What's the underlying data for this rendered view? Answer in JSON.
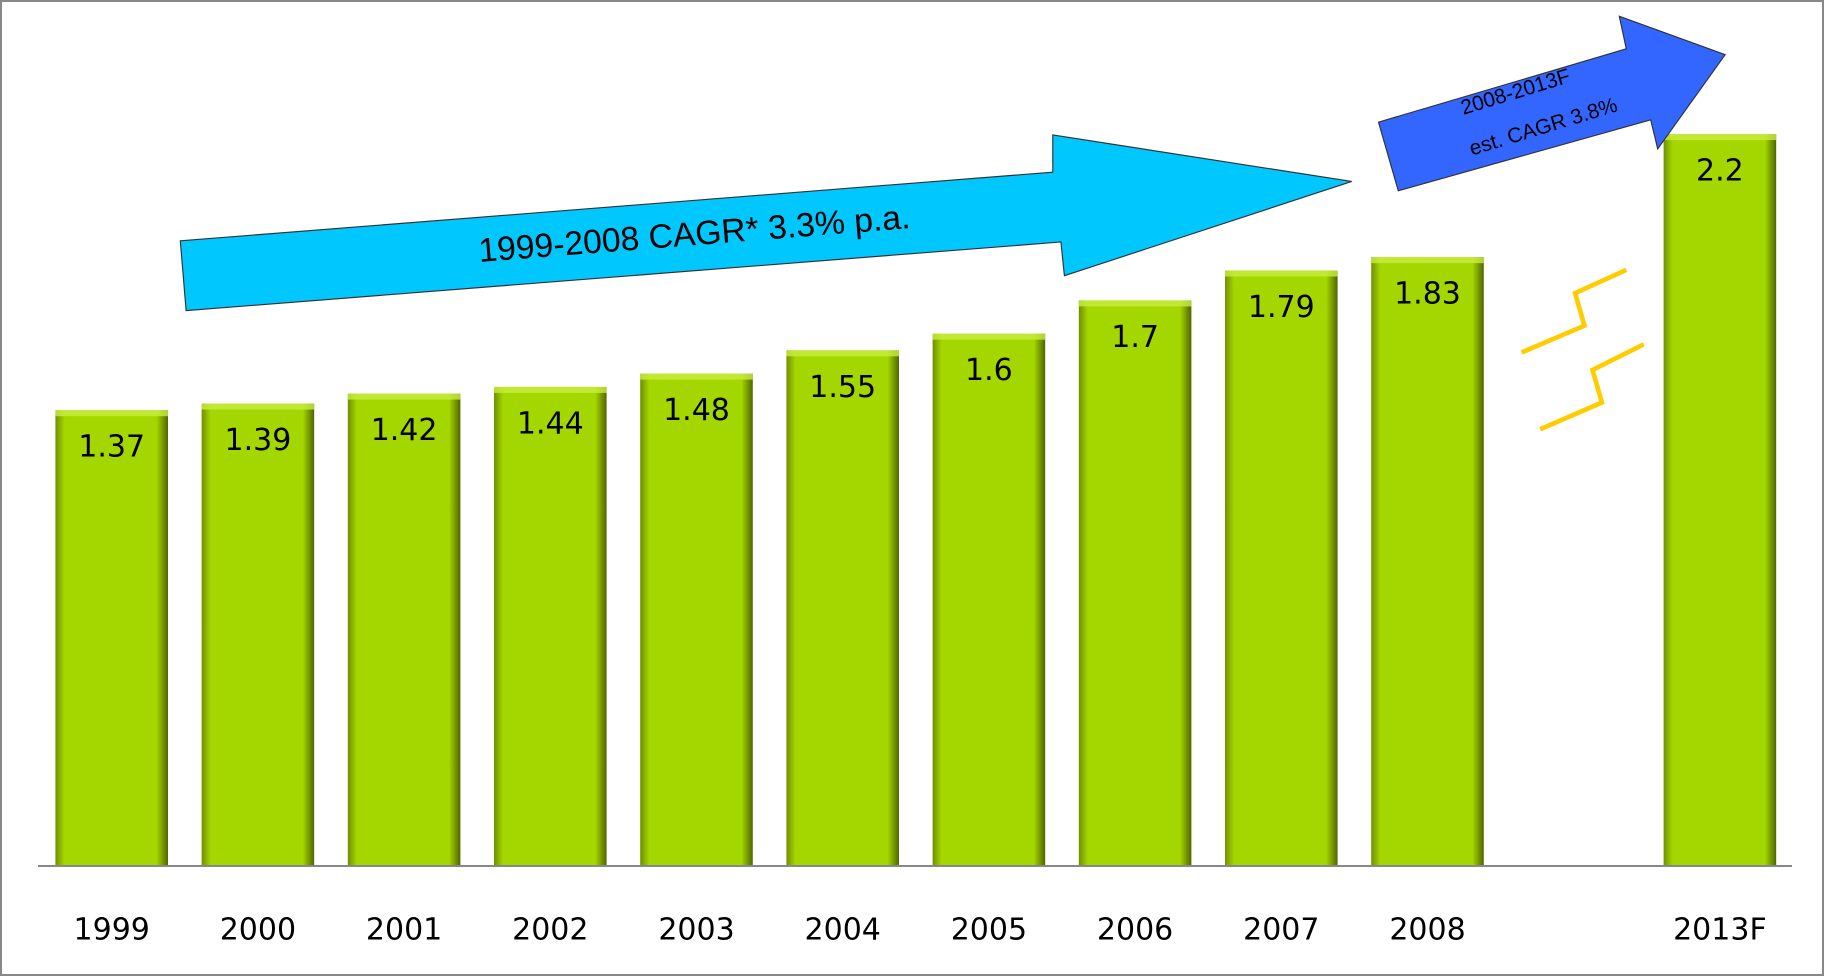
{
  "chart_data": {
    "type": "bar",
    "categories": [
      "1999",
      "2000",
      "2001",
      "2002",
      "2003",
      "2004",
      "2005",
      "2006",
      "2007",
      "2008",
      null,
      "2013F"
    ],
    "values": [
      1.37,
      1.39,
      1.42,
      1.44,
      1.48,
      1.55,
      1.6,
      1.7,
      1.79,
      1.83,
      null,
      2.2
    ],
    "color": "#a4d600",
    "ylim": [
      0,
      2.6
    ],
    "annotations": [
      "1999-2008 CAGR* 3.3% p.a.",
      "2008-2013F",
      "est. CAGR 3.8%"
    ]
  }
}
